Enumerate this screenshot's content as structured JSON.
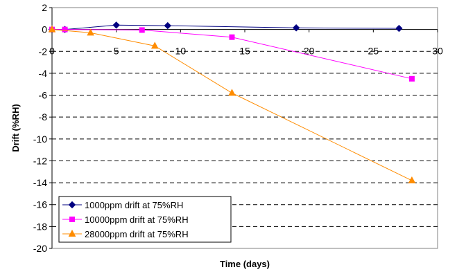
{
  "chart_data": {
    "type": "line",
    "title": "",
    "xlabel": "Time (days)",
    "ylabel": "Drift (%RH)",
    "xlim": [
      0,
      30
    ],
    "ylim": [
      -20,
      2
    ],
    "xticks": [
      0,
      5,
      10,
      15,
      20,
      25,
      30
    ],
    "yticks": [
      2,
      0,
      -2,
      -4,
      -6,
      -8,
      -10,
      -12,
      -14,
      -16,
      -18,
      -20
    ],
    "grid": "horizontal dashed",
    "legend_position": "bottom-left",
    "series": [
      {
        "name": "1000ppm drift at 75%RH",
        "color": "#000080",
        "marker": "diamond",
        "x": [
          0,
          1,
          5,
          9,
          19,
          27
        ],
        "y": [
          0,
          0,
          0.4,
          0.35,
          0.15,
          0.1
        ]
      },
      {
        "name": "10000ppm drift at 75%RH",
        "color": "#FF00FF",
        "marker": "square",
        "x": [
          0,
          1,
          7,
          14,
          28
        ],
        "y": [
          0,
          0,
          -0.05,
          -0.7,
          -4.5
        ]
      },
      {
        "name": "28000ppm drift at 75%RH",
        "color": "#FF8C00",
        "marker": "triangle",
        "x": [
          0,
          3,
          8,
          14,
          28
        ],
        "y": [
          0,
          -0.3,
          -1.5,
          -5.8,
          -13.8
        ]
      }
    ]
  }
}
